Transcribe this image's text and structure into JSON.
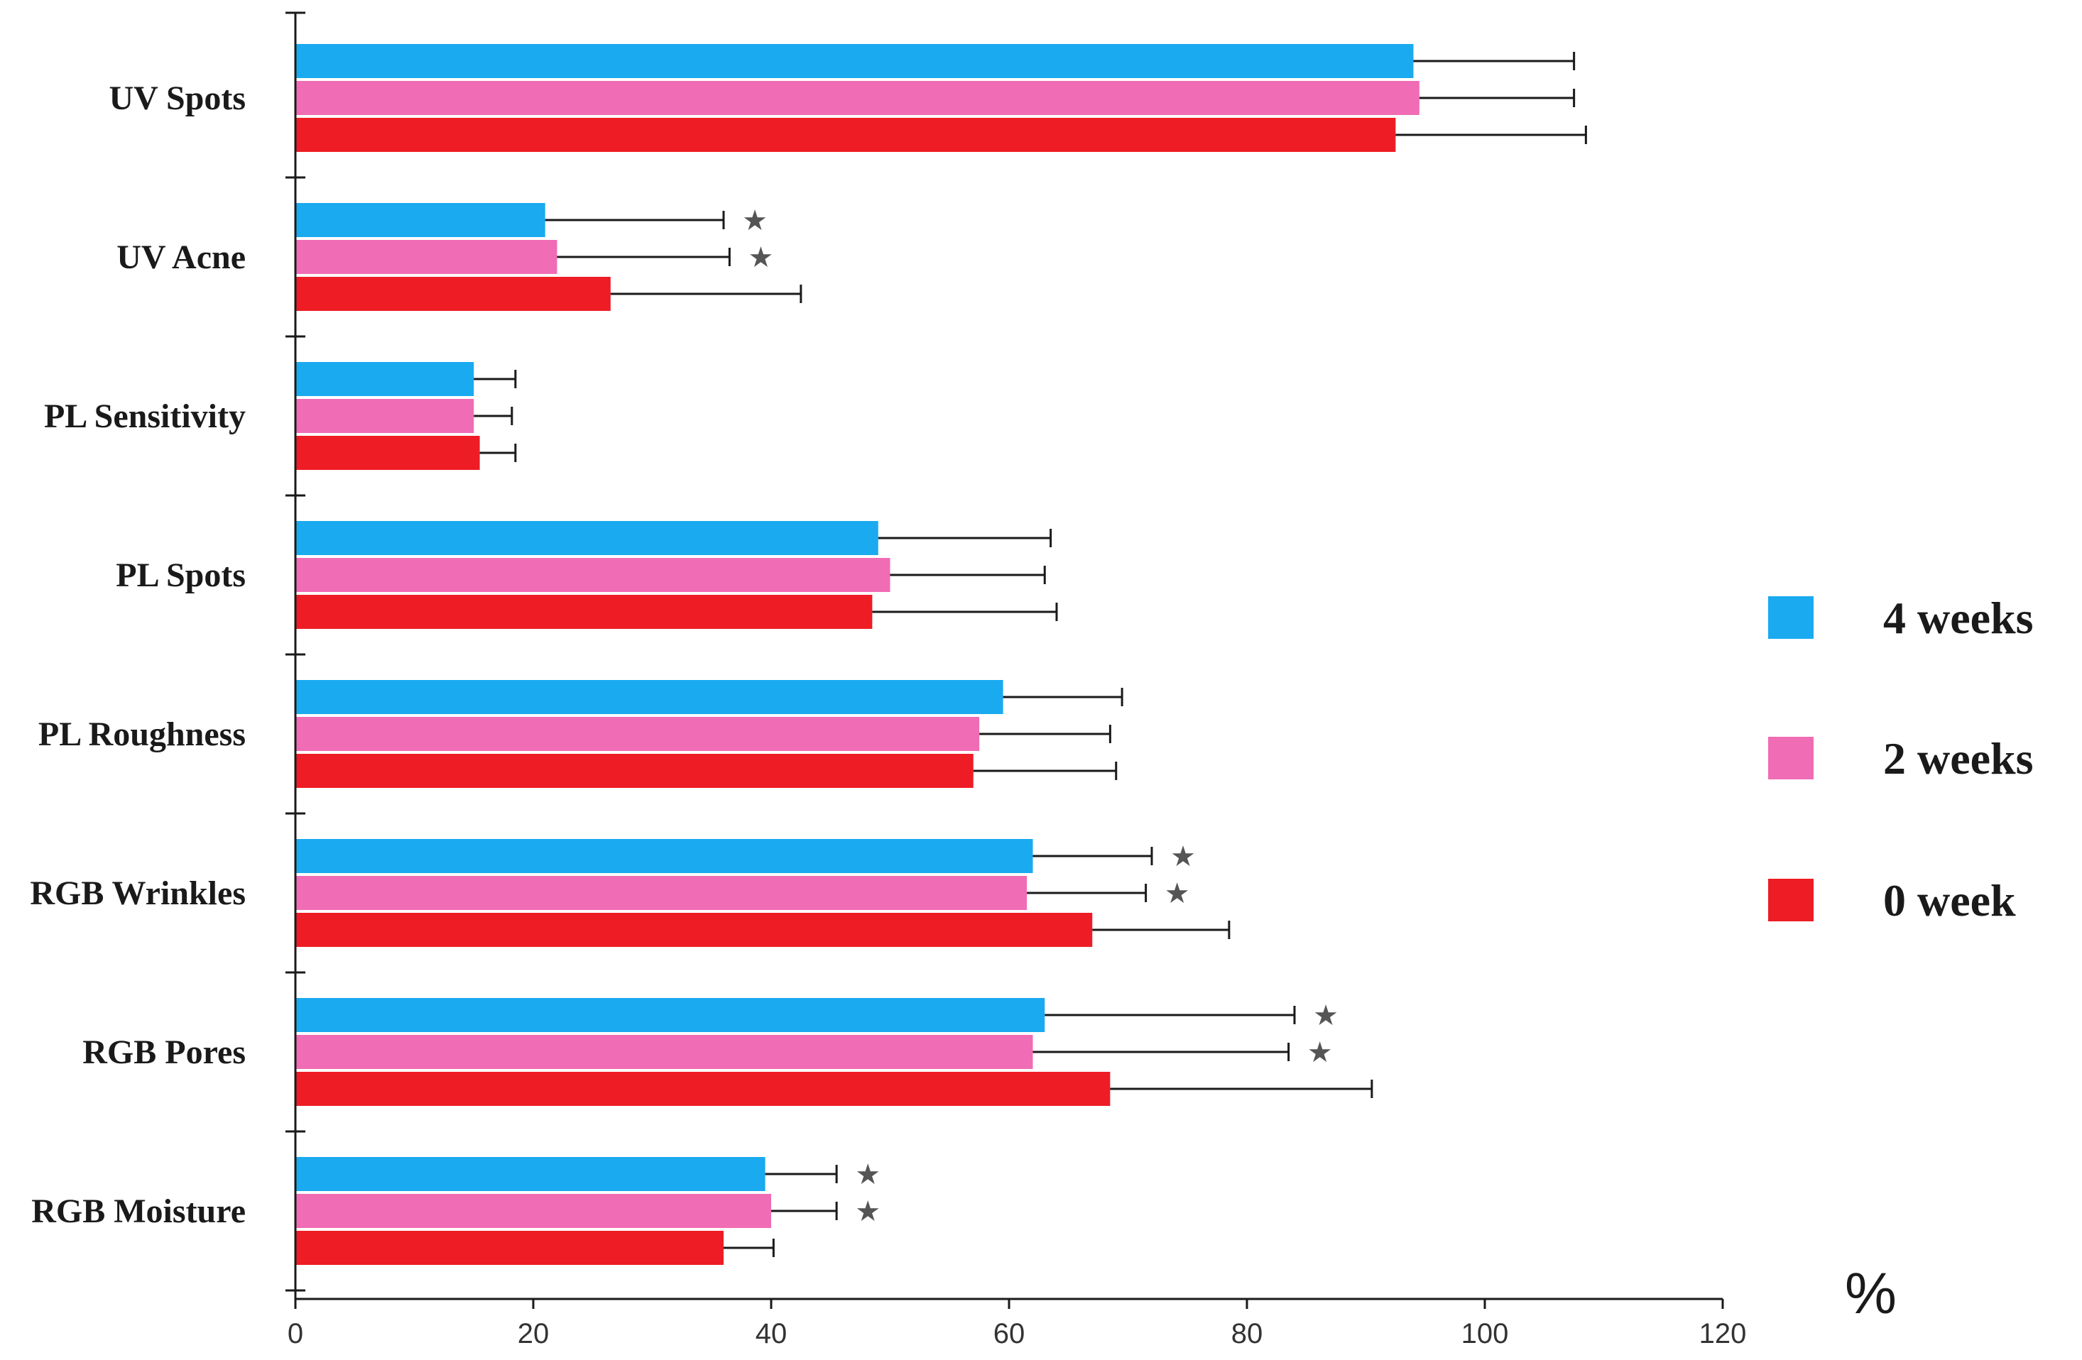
{
  "chart_data": {
    "type": "bar",
    "orientation": "horizontal",
    "title": "",
    "xlabel": "%",
    "ylabel": "",
    "xlim": [
      0,
      120
    ],
    "x_ticks": [
      "0",
      "20",
      "40",
      "60",
      "80",
      "100",
      "120"
    ],
    "grid": false,
    "legend_position": "right",
    "significance_marker": "★",
    "categories": [
      "UV Spots",
      "UV Acne",
      "PL Sensitivity",
      "PL Spots",
      "PL Roughness",
      "RGB Wrinkles",
      "RGB Pores",
      "RGB Moisture"
    ],
    "series": [
      {
        "name": "4 weeks",
        "color": "#1aaaf0",
        "values": [
          94,
          21,
          15,
          49,
          59.5,
          62,
          63,
          39.5
        ],
        "errors": [
          13.5,
          15,
          3.5,
          14.5,
          10,
          10,
          21,
          6
        ],
        "significant": [
          false,
          true,
          false,
          false,
          false,
          true,
          true,
          true
        ]
      },
      {
        "name": "2 weeks",
        "color": "#f06cb4",
        "values": [
          94.5,
          22,
          15,
          50,
          57.5,
          61.5,
          62,
          40
        ],
        "errors": [
          13,
          14.5,
          3.2,
          13,
          11,
          10,
          21.5,
          5.5
        ],
        "significant": [
          false,
          true,
          false,
          false,
          false,
          true,
          true,
          true
        ]
      },
      {
        "name": "0 week",
        "color": "#ee1c25",
        "values": [
          92.5,
          26.5,
          15.5,
          48.5,
          57,
          67,
          68.5,
          36
        ],
        "errors": [
          16,
          16,
          3,
          15.5,
          12,
          11.5,
          22,
          4.2
        ],
        "significant": [
          false,
          false,
          false,
          false,
          false,
          false,
          false,
          false
        ]
      }
    ]
  }
}
